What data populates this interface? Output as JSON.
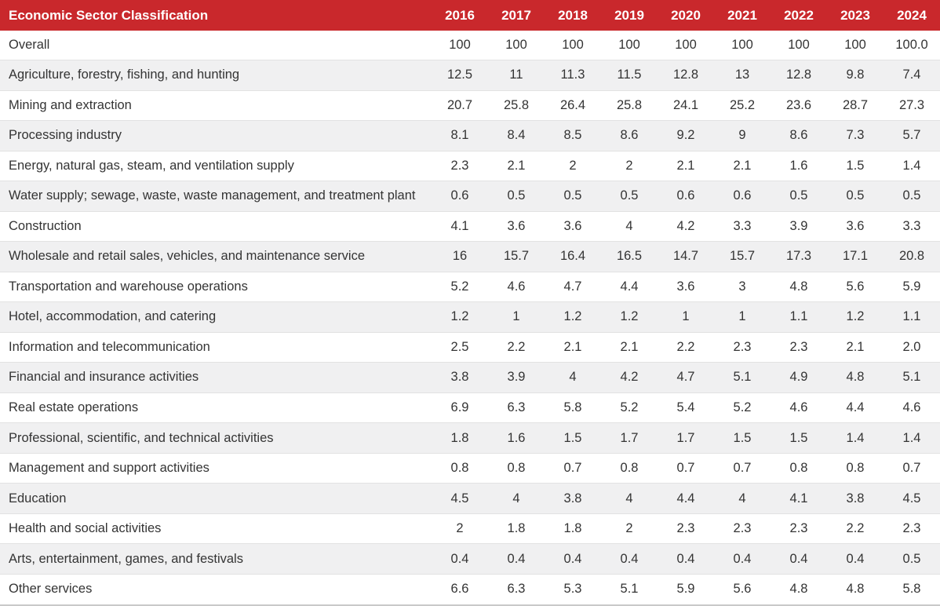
{
  "chart_data": {
    "type": "table",
    "title": "Economic Sector Classification",
    "columns": [
      "2016",
      "2017",
      "2018",
      "2019",
      "2020",
      "2021",
      "2022",
      "2023",
      "2024"
    ],
    "rows": [
      {
        "label": "Overall",
        "values": [
          "100",
          "100",
          "100",
          "100",
          "100",
          "100",
          "100",
          "100",
          "100.0"
        ]
      },
      {
        "label": "Agriculture, forestry, fishing, and hunting",
        "values": [
          "12.5",
          "11",
          "11.3",
          "11.5",
          "12.8",
          "13",
          "12.8",
          "9.8",
          "7.4"
        ]
      },
      {
        "label": "Mining and extraction",
        "values": [
          "20.7",
          "25.8",
          "26.4",
          "25.8",
          "24.1",
          "25.2",
          "23.6",
          "28.7",
          "27.3"
        ]
      },
      {
        "label": "Processing industry",
        "values": [
          "8.1",
          "8.4",
          "8.5",
          "8.6",
          "9.2",
          "9",
          "8.6",
          "7.3",
          "5.7"
        ]
      },
      {
        "label": "Energy, natural gas, steam, and ventilation supply",
        "values": [
          "2.3",
          "2.1",
          "2",
          "2",
          "2.1",
          "2.1",
          "1.6",
          "1.5",
          "1.4"
        ]
      },
      {
        "label": "Water supply; sewage, waste, waste management, and treatment plant",
        "values": [
          "0.6",
          "0.5",
          "0.5",
          "0.5",
          "0.6",
          "0.6",
          "0.5",
          "0.5",
          "0.5"
        ]
      },
      {
        "label": "Construction",
        "values": [
          "4.1",
          "3.6",
          "3.6",
          "4",
          "4.2",
          "3.3",
          "3.9",
          "3.6",
          "3.3"
        ]
      },
      {
        "label": "Wholesale and retail sales, vehicles, and maintenance service",
        "values": [
          "16",
          "15.7",
          "16.4",
          "16.5",
          "14.7",
          "15.7",
          "17.3",
          "17.1",
          "20.8"
        ]
      },
      {
        "label": "Transportation and warehouse operations",
        "values": [
          "5.2",
          "4.6",
          "4.7",
          "4.4",
          "3.6",
          "3",
          "4.8",
          "5.6",
          "5.9"
        ]
      },
      {
        "label": "Hotel, accommodation, and catering",
        "values": [
          "1.2",
          "1",
          "1.2",
          "1.2",
          "1",
          "1",
          "1.1",
          "1.2",
          "1.1"
        ]
      },
      {
        "label": "Information and telecommunication",
        "values": [
          "2.5",
          "2.2",
          "2.1",
          "2.1",
          "2.2",
          "2.3",
          "2.3",
          "2.1",
          "2.0"
        ]
      },
      {
        "label": "Financial and insurance activities",
        "values": [
          "3.8",
          "3.9",
          "4",
          "4.2",
          "4.7",
          "5.1",
          "4.9",
          "4.8",
          "5.1"
        ]
      },
      {
        "label": "Real estate operations",
        "values": [
          "6.9",
          "6.3",
          "5.8",
          "5.2",
          "5.4",
          "5.2",
          "4.6",
          "4.4",
          "4.6"
        ]
      },
      {
        "label": "Professional, scientific, and technical activities",
        "values": [
          "1.8",
          "1.6",
          "1.5",
          "1.7",
          "1.7",
          "1.5",
          "1.5",
          "1.4",
          "1.4"
        ]
      },
      {
        "label": "Management and support activities",
        "values": [
          "0.8",
          "0.8",
          "0.7",
          "0.8",
          "0.7",
          "0.7",
          "0.8",
          "0.8",
          "0.7"
        ]
      },
      {
        "label": "Education",
        "values": [
          "4.5",
          "4",
          "3.8",
          "4",
          "4.4",
          "4",
          "4.1",
          "3.8",
          "4.5"
        ]
      },
      {
        "label": "Health and social activities",
        "values": [
          "2",
          "1.8",
          "1.8",
          "2",
          "2.3",
          "2.3",
          "2.3",
          "2.2",
          "2.3"
        ]
      },
      {
        "label": "Arts, entertainment, games, and festivals",
        "values": [
          "0.4",
          "0.4",
          "0.4",
          "0.4",
          "0.4",
          "0.4",
          "0.4",
          "0.4",
          "0.5"
        ]
      },
      {
        "label": "Other services",
        "values": [
          "6.6",
          "6.3",
          "5.3",
          "5.1",
          "5.9",
          "5.6",
          "4.8",
          "4.8",
          "5.8"
        ]
      }
    ]
  },
  "colors": {
    "header_background": "#c9282c",
    "header_text": "#ffffff",
    "body_text": "#343434",
    "alt_row_background": "#f0f0f1",
    "row_border": "#e2e2e2",
    "bottom_border": "#c9c9c9"
  }
}
